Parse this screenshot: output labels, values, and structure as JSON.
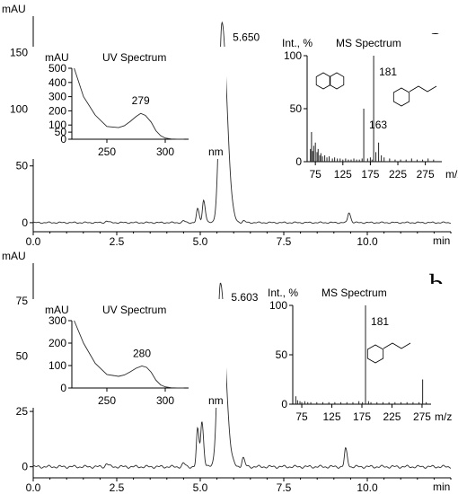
{
  "chart_data": [
    {
      "type": "line",
      "panel_letter": "a",
      "xlabel": "min",
      "ylabel": "mAU",
      "xlim": [
        0,
        12.5
      ],
      "ylim": [
        -8,
        182
      ],
      "x_ticks": [
        0.0,
        2.5,
        5.0,
        7.5,
        10.0
      ],
      "x_tick_labels": [
        "0.0",
        "2.5",
        "5.0",
        "7.5",
        "10.0"
      ],
      "y_ticks": [
        0,
        50,
        100,
        150
      ],
      "y_tick_labels": [
        "0",
        "50",
        "100",
        "150"
      ],
      "baseline": 0,
      "peaks": [
        {
          "rt": 2.2,
          "height": 1.5
        },
        {
          "rt": 4.5,
          "height": 1.5
        },
        {
          "rt": 4.92,
          "height": 12
        },
        {
          "rt": 5.1,
          "height": 20
        },
        {
          "rt": 5.65,
          "height": 176
        },
        {
          "rt": 6.3,
          "height": 1.5
        },
        {
          "rt": 9.45,
          "height": 9
        }
      ],
      "annotations": [
        {
          "label": "5.650",
          "x": 5.65
        }
      ],
      "uv_inset": {
        "title": "UV Spectrum",
        "ylabel": "mAU",
        "xlabel": "nm",
        "xlim": [
          220,
          320
        ],
        "ylim": [
          0,
          500
        ],
        "x_ticks": [
          250,
          300
        ],
        "y_ticks": [
          0,
          50,
          100,
          200,
          300,
          400,
          500
        ],
        "x": [
          222,
          230,
          240,
          250,
          260,
          265,
          270,
          275,
          279,
          283,
          288,
          292,
          296,
          300,
          305,
          310,
          316
        ],
        "y": [
          500,
          300,
          170,
          90,
          82,
          95,
          125,
          160,
          182,
          168,
          120,
          60,
          25,
          8,
          2,
          0,
          0
        ],
        "peak_label": "279",
        "peak_x": 279
      },
      "ms_inset": {
        "title": "MS Spectrum",
        "ylabel": "Int., %",
        "xlabel": "m/z",
        "xlim": [
          60,
          305
        ],
        "ylim": [
          0,
          100
        ],
        "x_ticks": [
          75,
          125,
          175,
          225,
          275
        ],
        "y_ticks": [
          0,
          50,
          100
        ],
        "x": [
          66,
          68,
          70,
          72,
          75,
          78,
          80,
          83,
          85,
          88,
          92,
          96,
          100,
          106,
          110,
          115,
          120,
          125,
          130,
          135,
          140,
          145,
          150,
          155,
          160,
          163,
          170,
          175,
          178,
          181,
          185,
          190,
          195,
          200,
          210,
          220,
          230,
          240,
          250,
          260,
          270,
          280,
          290
        ],
        "y": [
          12,
          28,
          10,
          15,
          18,
          9,
          12,
          6,
          8,
          5,
          6,
          4,
          5,
          3,
          4,
          3,
          3,
          2,
          3,
          2,
          2,
          3,
          2,
          2,
          3,
          50,
          3,
          4,
          2,
          100,
          9,
          18,
          6,
          4,
          3,
          2,
          2,
          2,
          3,
          2,
          2,
          3,
          2
        ],
        "labels": [
          {
            "text": "163",
            "x": 163
          },
          {
            "text": "181",
            "x": 181
          }
        ]
      }
    },
    {
      "type": "line",
      "panel_letter": "b",
      "xlabel": "min",
      "ylabel": "mAU",
      "xlim": [
        0,
        12.5
      ],
      "ylim": [
        -5,
        92
      ],
      "x_ticks": [
        0.0,
        2.5,
        5.0,
        7.5,
        10.0
      ],
      "x_tick_labels": [
        "0.0",
        "2.5",
        "5.0",
        "7.5",
        "10.0"
      ],
      "y_ticks": [
        0,
        25,
        50,
        75
      ],
      "y_tick_labels": [
        "0",
        "25",
        "50",
        "75"
      ],
      "baseline": 0,
      "peaks": [
        {
          "rt": 2.2,
          "height": 1.5
        },
        {
          "rt": 4.5,
          "height": 1.5
        },
        {
          "rt": 4.92,
          "height": 17
        },
        {
          "rt": 5.05,
          "height": 20
        },
        {
          "rt": 5.603,
          "height": 83
        },
        {
          "rt": 6.28,
          "height": 4
        },
        {
          "rt": 9.35,
          "height": 8
        }
      ],
      "annotations": [
        {
          "label": "5.603",
          "x": 5.603
        }
      ],
      "uv_inset": {
        "title": "UV Spectrum",
        "ylabel": "mAU",
        "xlabel": "nm",
        "xlim": [
          220,
          320
        ],
        "ylim": [
          0,
          300
        ],
        "x_ticks": [
          250,
          300
        ],
        "y_ticks": [
          0,
          100,
          200,
          300
        ],
        "x": [
          222,
          230,
          240,
          250,
          260,
          265,
          270,
          275,
          280,
          284,
          288,
          292,
          296,
          300,
          305,
          310,
          316
        ],
        "y": [
          300,
          200,
          110,
          60,
          52,
          58,
          72,
          88,
          98,
          92,
          70,
          35,
          14,
          5,
          1,
          0,
          0
        ],
        "peak_label": "280",
        "peak_x": 280
      },
      "ms_inset": {
        "title": "MS Spectrum",
        "ylabel": "Int., %",
        "xlabel": "m/z",
        "xlim": [
          60,
          290
        ],
        "ylim": [
          0,
          100
        ],
        "x_ticks": [
          75,
          125,
          175,
          225,
          275
        ],
        "y_ticks": [
          0,
          50,
          100
        ],
        "x": [
          65,
          68,
          72,
          75,
          80,
          85,
          90,
          100,
          110,
          120,
          130,
          140,
          150,
          160,
          170,
          176,
          181,
          186,
          190,
          200,
          210,
          220,
          230,
          240,
          250,
          260,
          270,
          276,
          282
        ],
        "y": [
          8,
          4,
          3,
          2,
          3,
          2,
          2,
          2,
          2,
          2,
          2,
          2,
          2,
          2,
          3,
          2,
          100,
          3,
          2,
          2,
          2,
          2,
          2,
          2,
          2,
          2,
          2,
          25,
          2
        ],
        "labels": [
          {
            "text": "181",
            "x": 181
          }
        ]
      }
    }
  ]
}
